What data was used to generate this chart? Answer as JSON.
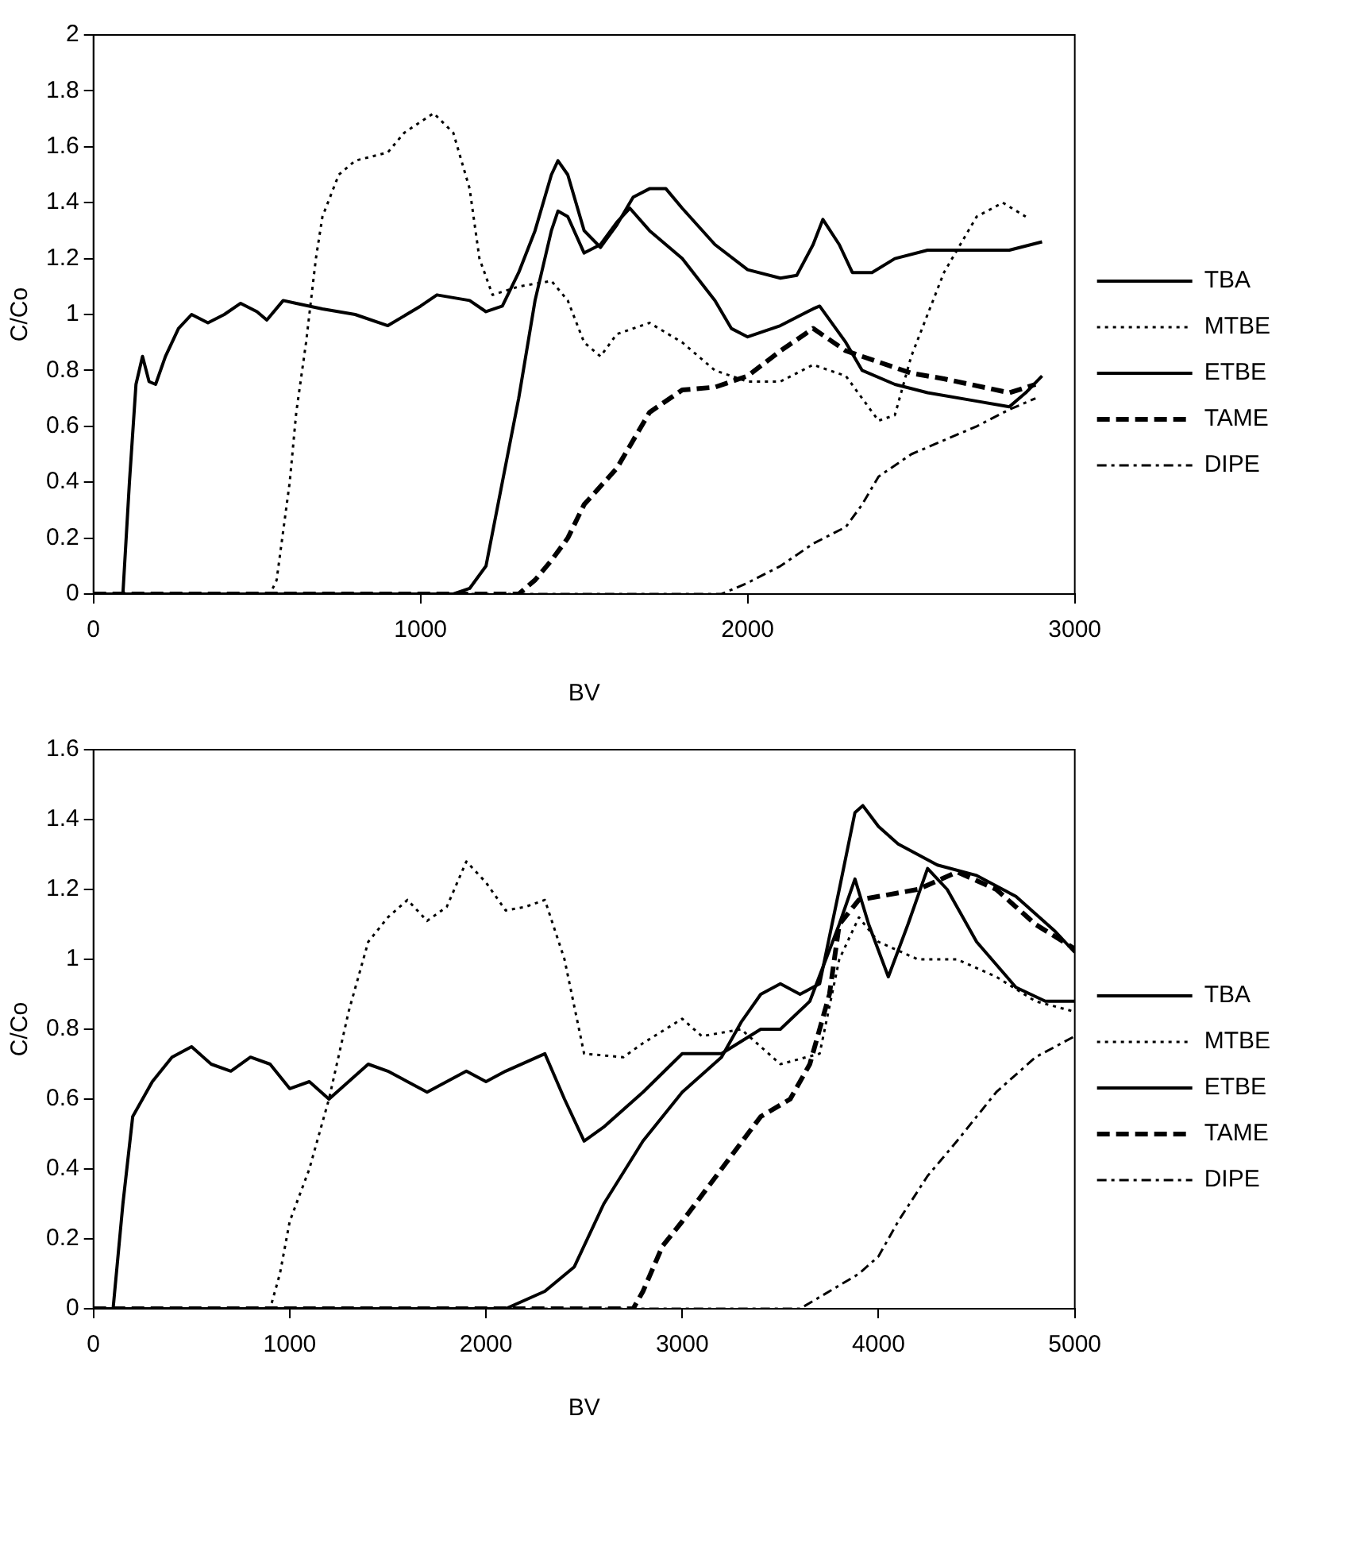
{
  "chart_data": [
    {
      "type": "line",
      "xlabel": "BV",
      "ylabel": "C/Co",
      "xlim": [
        0,
        3000
      ],
      "xticks": [
        0,
        1000,
        2000,
        3000
      ],
      "ylim": [
        0,
        2
      ],
      "yticks": [
        0,
        0.2,
        0.4,
        0.6,
        0.8,
        1,
        1.2,
        1.4,
        1.6,
        1.8,
        2
      ],
      "grid": false,
      "legend": "right",
      "marker": "none",
      "series": [
        {
          "name": "TBA",
          "color": "#000000",
          "line_style": "solid",
          "x": [
            0,
            90,
            110,
            130,
            150,
            170,
            190,
            220,
            260,
            300,
            350,
            400,
            450,
            500,
            530,
            580,
            620,
            700,
            800,
            900,
            1000,
            1050,
            1150,
            1200,
            1250,
            1300,
            1350,
            1400,
            1420,
            1450,
            1500,
            1550,
            1600,
            1650,
            1700,
            1750,
            1800,
            1900,
            2000,
            2100,
            2150,
            2200,
            2230,
            2280,
            2320,
            2380,
            2450,
            2550,
            2700,
            2800,
            2900
          ],
          "values": [
            0,
            0,
            0.4,
            0.75,
            0.85,
            0.76,
            0.75,
            0.85,
            0.95,
            1.0,
            0.97,
            1.0,
            1.04,
            1.01,
            0.98,
            1.05,
            1.04,
            1.02,
            1.0,
            0.96,
            1.03,
            1.07,
            1.05,
            1.01,
            1.03,
            1.15,
            1.3,
            1.5,
            1.55,
            1.5,
            1.3,
            1.24,
            1.32,
            1.42,
            1.45,
            1.45,
            1.38,
            1.25,
            1.16,
            1.13,
            1.14,
            1.25,
            1.34,
            1.25,
            1.15,
            1.15,
            1.2,
            1.23,
            1.23,
            1.23,
            1.26
          ]
        },
        {
          "name": "MTBE",
          "color": "#000000",
          "line_style": "dotted",
          "x": [
            0,
            540,
            560,
            600,
            620,
            650,
            680,
            700,
            750,
            800,
            900,
            950,
            1040,
            1100,
            1150,
            1180,
            1220,
            1300,
            1400,
            1450,
            1500,
            1550,
            1600,
            1700,
            1800,
            1900,
            2000,
            2100,
            2200,
            2300,
            2400,
            2450,
            2500,
            2600,
            2700,
            2780,
            2850
          ],
          "values": [
            0,
            0,
            0.05,
            0.4,
            0.65,
            0.9,
            1.2,
            1.35,
            1.5,
            1.55,
            1.58,
            1.65,
            1.72,
            1.65,
            1.45,
            1.2,
            1.07,
            1.1,
            1.12,
            1.05,
            0.9,
            0.85,
            0.93,
            0.97,
            0.9,
            0.8,
            0.76,
            0.76,
            0.82,
            0.78,
            0.62,
            0.64,
            0.85,
            1.15,
            1.35,
            1.4,
            1.35
          ]
        },
        {
          "name": "ETBE",
          "color": "#000000",
          "line_style": "solid",
          "x": [
            0,
            1100,
            1150,
            1200,
            1250,
            1300,
            1350,
            1400,
            1420,
            1450,
            1500,
            1550,
            1600,
            1640,
            1700,
            1800,
            1900,
            1950,
            2000,
            2100,
            2200,
            2220,
            2300,
            2350,
            2450,
            2550,
            2700,
            2800,
            2850,
            2900
          ],
          "values": [
            0,
            0,
            0.02,
            0.1,
            0.4,
            0.7,
            1.05,
            1.3,
            1.37,
            1.35,
            1.22,
            1.25,
            1.33,
            1.38,
            1.3,
            1.2,
            1.05,
            0.95,
            0.92,
            0.96,
            1.02,
            1.03,
            0.9,
            0.8,
            0.75,
            0.72,
            0.69,
            0.67,
            0.72,
            0.78
          ]
        },
        {
          "name": "TAME",
          "color": "#000000",
          "line_style": "dashed",
          "x": [
            0,
            1300,
            1350,
            1400,
            1450,
            1500,
            1600,
            1650,
            1700,
            1800,
            1900,
            2000,
            2100,
            2200,
            2300,
            2400,
            2500,
            2600,
            2800,
            2880
          ],
          "values": [
            0,
            0,
            0.05,
            0.12,
            0.2,
            0.32,
            0.45,
            0.55,
            0.65,
            0.73,
            0.74,
            0.78,
            0.87,
            0.95,
            0.87,
            0.83,
            0.79,
            0.77,
            0.72,
            0.75
          ]
        },
        {
          "name": "DIPE",
          "color": "#000000",
          "line_style": "dashdot",
          "x": [
            0,
            1920,
            2000,
            2100,
            2200,
            2300,
            2350,
            2400,
            2500,
            2600,
            2700,
            2800,
            2880
          ],
          "values": [
            0,
            0,
            0.04,
            0.1,
            0.18,
            0.24,
            0.32,
            0.42,
            0.5,
            0.55,
            0.6,
            0.66,
            0.7
          ]
        }
      ]
    },
    {
      "type": "line",
      "xlabel": "BV",
      "ylabel": "C/Co",
      "xlim": [
        0,
        5000
      ],
      "xticks": [
        0,
        1000,
        2000,
        3000,
        4000,
        5000
      ],
      "ylim": [
        0,
        1.6
      ],
      "yticks": [
        0,
        0.2,
        0.4,
        0.6,
        0.8,
        1,
        1.2,
        1.4,
        1.6
      ],
      "grid": false,
      "legend": "right",
      "marker": "none",
      "series": [
        {
          "name": "TBA",
          "color": "#000000",
          "line_style": "solid",
          "x": [
            0,
            100,
            150,
            200,
            300,
            400,
            500,
            600,
            700,
            800,
            900,
            1000,
            1100,
            1200,
            1300,
            1400,
            1500,
            1700,
            1900,
            2000,
            2100,
            2300,
            2400,
            2500,
            2600,
            2800,
            3000,
            3200,
            3400,
            3500,
            3650,
            3800,
            3880,
            3950,
            4050,
            4150,
            4250,
            4350,
            4500,
            4700,
            4850,
            5000
          ],
          "values": [
            0,
            0,
            0.3,
            0.55,
            0.65,
            0.72,
            0.75,
            0.7,
            0.68,
            0.72,
            0.7,
            0.63,
            0.65,
            0.6,
            0.65,
            0.7,
            0.68,
            0.62,
            0.68,
            0.65,
            0.68,
            0.73,
            0.6,
            0.48,
            0.52,
            0.62,
            0.73,
            0.73,
            0.8,
            0.8,
            0.88,
            1.1,
            1.23,
            1.1,
            0.95,
            1.1,
            1.26,
            1.2,
            1.05,
            0.92,
            0.88,
            0.88
          ]
        },
        {
          "name": "MTBE",
          "color": "#000000",
          "line_style": "dotted",
          "x": [
            0,
            900,
            950,
            1000,
            1100,
            1200,
            1300,
            1400,
            1500,
            1600,
            1700,
            1800,
            1900,
            2000,
            2100,
            2200,
            2300,
            2400,
            2500,
            2700,
            2800,
            3000,
            3100,
            3300,
            3500,
            3700,
            3800,
            3900,
            4000,
            4200,
            4400,
            4600,
            4800,
            5000
          ],
          "values": [
            0,
            0,
            0.1,
            0.25,
            0.4,
            0.6,
            0.85,
            1.05,
            1.12,
            1.17,
            1.11,
            1.15,
            1.28,
            1.22,
            1.14,
            1.15,
            1.17,
            1.0,
            0.73,
            0.72,
            0.76,
            0.83,
            0.78,
            0.8,
            0.7,
            0.73,
            1.0,
            1.12,
            1.05,
            1.0,
            1.0,
            0.95,
            0.88,
            0.85
          ]
        },
        {
          "name": "ETBE",
          "color": "#000000",
          "line_style": "solid",
          "x": [
            0,
            2100,
            2300,
            2450,
            2600,
            2800,
            3000,
            3200,
            3300,
            3400,
            3500,
            3600,
            3700,
            3800,
            3880,
            3920,
            4000,
            4100,
            4300,
            4500,
            4700,
            4900,
            5000
          ],
          "values": [
            0,
            0,
            0.05,
            0.12,
            0.3,
            0.48,
            0.62,
            0.72,
            0.82,
            0.9,
            0.93,
            0.9,
            0.93,
            1.2,
            1.42,
            1.44,
            1.38,
            1.33,
            1.27,
            1.24,
            1.18,
            1.08,
            1.02
          ]
        },
        {
          "name": "TAME",
          "color": "#000000",
          "line_style": "dashed",
          "x": [
            0,
            2750,
            2800,
            2900,
            3000,
            3200,
            3400,
            3550,
            3650,
            3750,
            3800,
            3900,
            4000,
            4200,
            4400,
            4600,
            4800,
            5000
          ],
          "values": [
            0,
            0,
            0.05,
            0.18,
            0.25,
            0.4,
            0.55,
            0.6,
            0.7,
            0.9,
            1.1,
            1.17,
            1.18,
            1.2,
            1.25,
            1.2,
            1.1,
            1.03
          ]
        },
        {
          "name": "DIPE",
          "color": "#000000",
          "line_style": "dashdot",
          "x": [
            0,
            3600,
            3750,
            3900,
            4000,
            4100,
            4250,
            4400,
            4600,
            4800,
            5000
          ],
          "values": [
            0,
            0,
            0.05,
            0.1,
            0.15,
            0.25,
            0.38,
            0.48,
            0.62,
            0.72,
            0.78
          ]
        }
      ]
    }
  ]
}
